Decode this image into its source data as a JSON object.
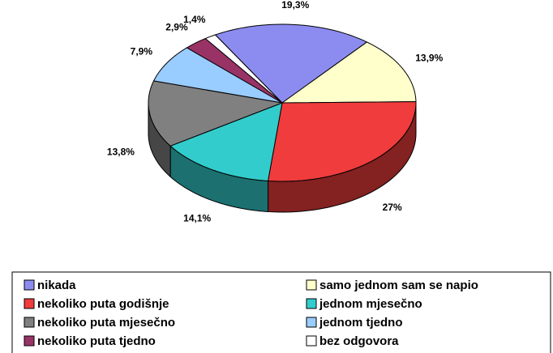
{
  "chart_data": {
    "type": "pie",
    "categories": [
      "nikada",
      "samo jednom sam se napio",
      "nekoliko puta godišnje",
      "jednom mjesečno",
      "nekoliko puta mjesečno",
      "jednom tjedno",
      "nekoliko puta tjedno",
      "bez odgovora"
    ],
    "values": [
      19.3,
      13.9,
      27,
      14.1,
      13.8,
      7.9,
      2.9,
      1.4
    ],
    "value_labels": [
      "19,3%",
      "13,9%",
      "27%",
      "14,1%",
      "13,8%",
      "7,9%",
      "2,9%",
      "1,4%"
    ],
    "colors": [
      "#8c8cf0",
      "#ffffcc",
      "#f03c3c",
      "#33cccc",
      "#808080",
      "#99ccff",
      "#993366",
      "#ffffff"
    ]
  }
}
